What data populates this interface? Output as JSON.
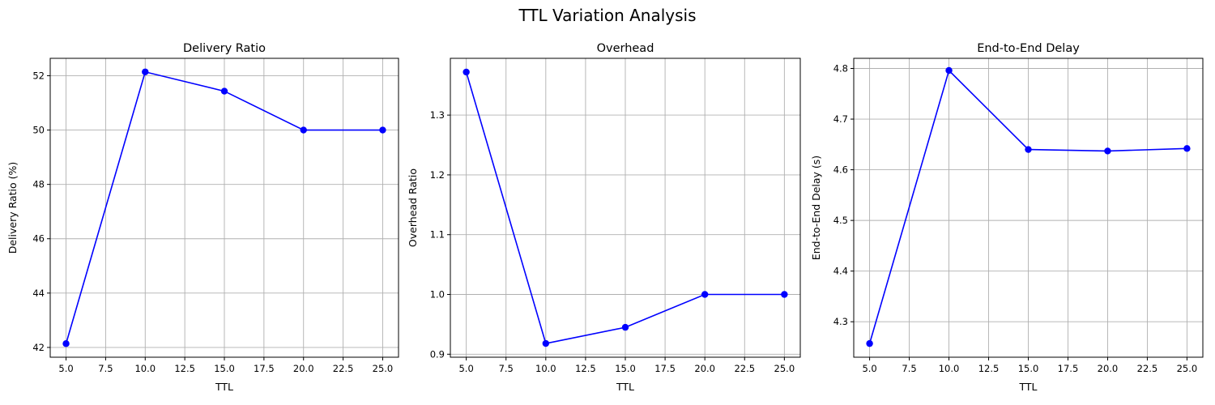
{
  "figure": {
    "title": "TTL Variation Analysis"
  },
  "style": {
    "line_color": "#0000ff",
    "marker_color": "#0000ff",
    "grid_color": "#b0b0b0"
  },
  "chart_data": [
    {
      "type": "line",
      "title": "Delivery Ratio",
      "xlabel": "TTL",
      "ylabel": "Delivery Ratio (%)",
      "x": [
        5,
        10,
        15,
        20,
        25
      ],
      "series": [
        {
          "values": [
            42.14,
            52.14,
            51.43,
            50.0,
            50.0
          ]
        }
      ],
      "xlim": [
        4.0,
        26.0
      ],
      "ylim": [
        41.64,
        52.64
      ],
      "xticks": [
        5.0,
        7.5,
        10.0,
        12.5,
        15.0,
        17.5,
        20.0,
        22.5,
        25.0
      ],
      "xtick_labels": [
        "5.0",
        "7.5",
        "10.0",
        "12.5",
        "15.0",
        "17.5",
        "20.0",
        "22.5",
        "25.0"
      ],
      "yticks": [
        42,
        44,
        46,
        48,
        50,
        52
      ],
      "ytick_labels": [
        "42",
        "44",
        "46",
        "48",
        "50",
        "52"
      ],
      "grid": true
    },
    {
      "type": "line",
      "title": "Overhead",
      "xlabel": "TTL",
      "ylabel": "Overhead Ratio",
      "x": [
        5,
        10,
        15,
        20,
        25
      ],
      "series": [
        {
          "values": [
            1.372,
            0.918,
            0.945,
            1.0,
            1.0
          ]
        }
      ],
      "xlim": [
        4.0,
        26.0
      ],
      "ylim": [
        0.895,
        1.395
      ],
      "xticks": [
        5.0,
        7.5,
        10.0,
        12.5,
        15.0,
        17.5,
        20.0,
        22.5,
        25.0
      ],
      "xtick_labels": [
        "5.0",
        "7.5",
        "10.0",
        "12.5",
        "15.0",
        "17.5",
        "20.0",
        "22.5",
        "25.0"
      ],
      "yticks": [
        0.9,
        1.0,
        1.1,
        1.2,
        1.3
      ],
      "ytick_labels": [
        "0.9",
        "1.0",
        "1.1",
        "1.2",
        "1.3"
      ],
      "grid": true
    },
    {
      "type": "line",
      "title": "End-to-End Delay",
      "xlabel": "TTL",
      "ylabel": "End-to-End Delay (s)",
      "x": [
        5,
        10,
        15,
        20,
        25
      ],
      "series": [
        {
          "values": [
            4.257,
            4.796,
            4.64,
            4.637,
            4.642
          ]
        }
      ],
      "xlim": [
        4.0,
        26.0
      ],
      "ylim": [
        4.23,
        4.82
      ],
      "xticks": [
        5.0,
        7.5,
        10.0,
        12.5,
        15.0,
        17.5,
        20.0,
        22.5,
        25.0
      ],
      "xtick_labels": [
        "5.0",
        "7.5",
        "10.0",
        "12.5",
        "15.0",
        "17.5",
        "20.0",
        "22.5",
        "25.0"
      ],
      "yticks": [
        4.3,
        4.4,
        4.5,
        4.6,
        4.7,
        4.8
      ],
      "ytick_labels": [
        "4.3",
        "4.4",
        "4.5",
        "4.6",
        "4.7",
        "4.8"
      ],
      "grid": true
    }
  ]
}
